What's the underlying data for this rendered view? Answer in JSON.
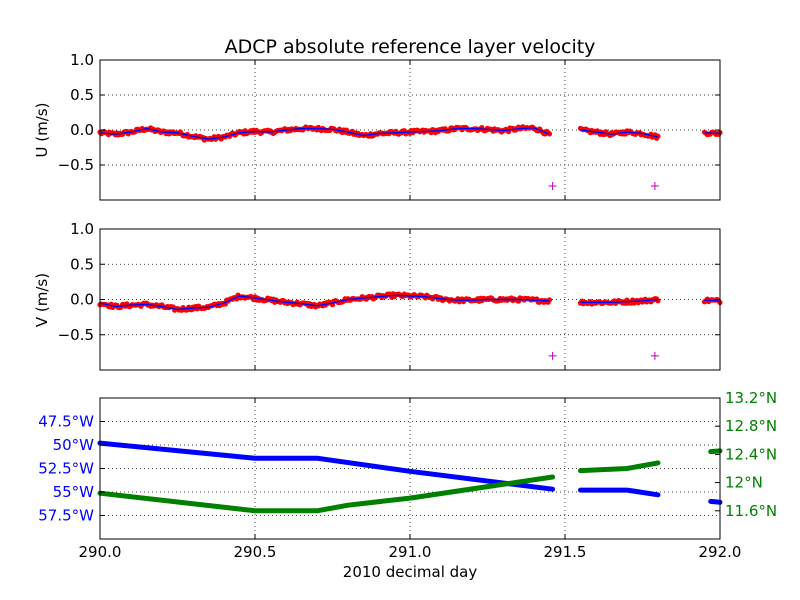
{
  "figure": {
    "title": "ADCP absolute reference layer velocity",
    "xlabel": "2010 decimal day"
  },
  "colors": {
    "velocity_points": "#ff0000",
    "velocity_line": "#0000ff",
    "flag_marker": "#bf00bf",
    "longitude": "#0000ff",
    "latitude": "#008000",
    "axes": "#000000",
    "grid": "#000000"
  },
  "chart_data": [
    {
      "type": "scatter",
      "panel": "u",
      "ylabel": "U (m/s)",
      "xlim": [
        290.0,
        292.0
      ],
      "ylim": [
        -1.0,
        1.0
      ],
      "y_ticks": [
        "1.0",
        "0.5",
        "0.0",
        "−0.5"
      ],
      "y_tick_values": [
        1.0,
        0.5,
        0.0,
        -0.5
      ],
      "grid": true,
      "x_tick_labels_visible": false,
      "segments": [
        {
          "x": [
            290.0,
            290.05,
            290.1,
            290.15,
            290.2,
            290.25,
            290.3,
            290.35,
            290.4,
            290.45,
            290.5,
            290.55,
            290.6,
            290.65,
            290.7,
            290.75,
            290.8,
            290.85,
            290.9,
            290.95,
            291.0,
            291.05,
            291.1,
            291.15,
            291.2,
            291.25,
            291.3,
            291.35,
            291.4,
            291.45
          ],
          "y": [
            -0.04,
            -0.06,
            -0.03,
            0.02,
            -0.03,
            -0.04,
            -0.09,
            -0.13,
            -0.1,
            -0.04,
            -0.02,
            -0.03,
            0.0,
            0.02,
            0.02,
            0.01,
            -0.03,
            -0.08,
            -0.05,
            -0.04,
            -0.03,
            -0.02,
            -0.01,
            0.02,
            0.02,
            0.01,
            -0.01,
            0.02,
            0.03,
            -0.06
          ]
        },
        {
          "x": [
            291.55,
            291.6,
            291.65,
            291.7,
            291.75,
            291.8
          ],
          "y": [
            0.0,
            -0.03,
            -0.06,
            -0.03,
            -0.05,
            -0.1
          ]
        },
        {
          "x": [
            291.95,
            292.0
          ],
          "y": [
            -0.04,
            -0.05
          ]
        }
      ],
      "flags": [
        {
          "x": 291.46,
          "y": -0.8
        },
        {
          "x": 291.79,
          "y": -0.8
        }
      ]
    },
    {
      "type": "scatter",
      "panel": "v",
      "ylabel": "V (m/s)",
      "xlim": [
        290.0,
        292.0
      ],
      "ylim": [
        -1.0,
        1.0
      ],
      "y_ticks": [
        "1.0",
        "0.5",
        "0.0",
        "−0.5"
      ],
      "y_tick_values": [
        1.0,
        0.5,
        0.0,
        -0.5
      ],
      "grid": true,
      "x_tick_labels_visible": false,
      "segments": [
        {
          "x": [
            290.0,
            290.05,
            290.1,
            290.15,
            290.2,
            290.25,
            290.3,
            290.35,
            290.4,
            290.45,
            290.5,
            290.55,
            290.6,
            290.65,
            290.7,
            290.75,
            290.8,
            290.85,
            290.9,
            290.95,
            291.0,
            291.05,
            291.1,
            291.15,
            291.2,
            291.25,
            291.3,
            291.35,
            291.4,
            291.45
          ],
          "y": [
            -0.05,
            -0.1,
            -0.08,
            -0.07,
            -0.1,
            -0.14,
            -0.12,
            -0.11,
            -0.05,
            0.05,
            0.02,
            -0.01,
            -0.04,
            -0.06,
            -0.09,
            -0.05,
            0.0,
            0.02,
            0.04,
            0.06,
            0.05,
            0.04,
            0.01,
            -0.01,
            -0.01,
            0.0,
            0.0,
            0.0,
            -0.01,
            -0.02
          ]
        },
        {
          "x": [
            291.55,
            291.6,
            291.65,
            291.7,
            291.75,
            291.8
          ],
          "y": [
            -0.04,
            -0.04,
            -0.04,
            -0.03,
            -0.02,
            0.0
          ]
        },
        {
          "x": [
            291.95,
            292.0
          ],
          "y": [
            -0.01,
            -0.02
          ]
        }
      ],
      "flags": [
        {
          "x": 291.46,
          "y": -0.8
        },
        {
          "x": 291.79,
          "y": -0.8
        }
      ]
    },
    {
      "type": "line",
      "panel": "position",
      "xlim": [
        290.0,
        292.0
      ],
      "x_ticks": [
        "290.0",
        "290.5",
        "291.0",
        "291.5",
        "292.0"
      ],
      "x_tick_values": [
        290.0,
        290.5,
        291.0,
        291.5,
        292.0
      ],
      "grid": true,
      "left_axis": {
        "quantity": "longitude (°W)",
        "ylim": [
          45.0,
          60.0
        ],
        "inverted": true,
        "ticks": [
          "47.5°W",
          "50°W",
          "52.5°W",
          "55°W",
          "57.5°W"
        ],
        "tick_values": [
          47.5,
          50.0,
          52.5,
          55.0,
          57.5
        ]
      },
      "right_axis": {
        "quantity": "latitude (°N)",
        "ylim": [
          11.2,
          13.2
        ],
        "ticks": [
          "13.2°N",
          "12.8°N",
          "12.4°N",
          "12°N",
          "11.6°N"
        ],
        "tick_values": [
          13.2,
          12.8,
          12.4,
          12.0,
          11.6
        ]
      },
      "series": [
        {
          "axis": "left",
          "segments": [
            {
              "x": [
                290.0,
                290.5,
                290.7,
                291.0,
                291.46
              ],
              "y": [
                49.8,
                51.4,
                51.4,
                52.8,
                54.7
              ]
            },
            {
              "x": [
                291.55,
                291.7,
                291.8
              ],
              "y": [
                54.8,
                54.8,
                55.3
              ]
            },
            {
              "x": [
                291.97,
                292.0
              ],
              "y": [
                56.0,
                56.1
              ]
            }
          ]
        },
        {
          "axis": "right",
          "segments": [
            {
              "x": [
                290.0,
                290.5,
                290.7,
                290.8,
                291.0,
                291.46
              ],
              "y": [
                11.85,
                11.6,
                11.6,
                11.68,
                11.78,
                12.08
              ]
            },
            {
              "x": [
                291.55,
                291.7,
                291.8
              ],
              "y": [
                12.17,
                12.2,
                12.28
              ]
            },
            {
              "x": [
                291.97,
                292.0
              ],
              "y": [
                12.44,
                12.45
              ]
            }
          ]
        }
      ]
    }
  ]
}
